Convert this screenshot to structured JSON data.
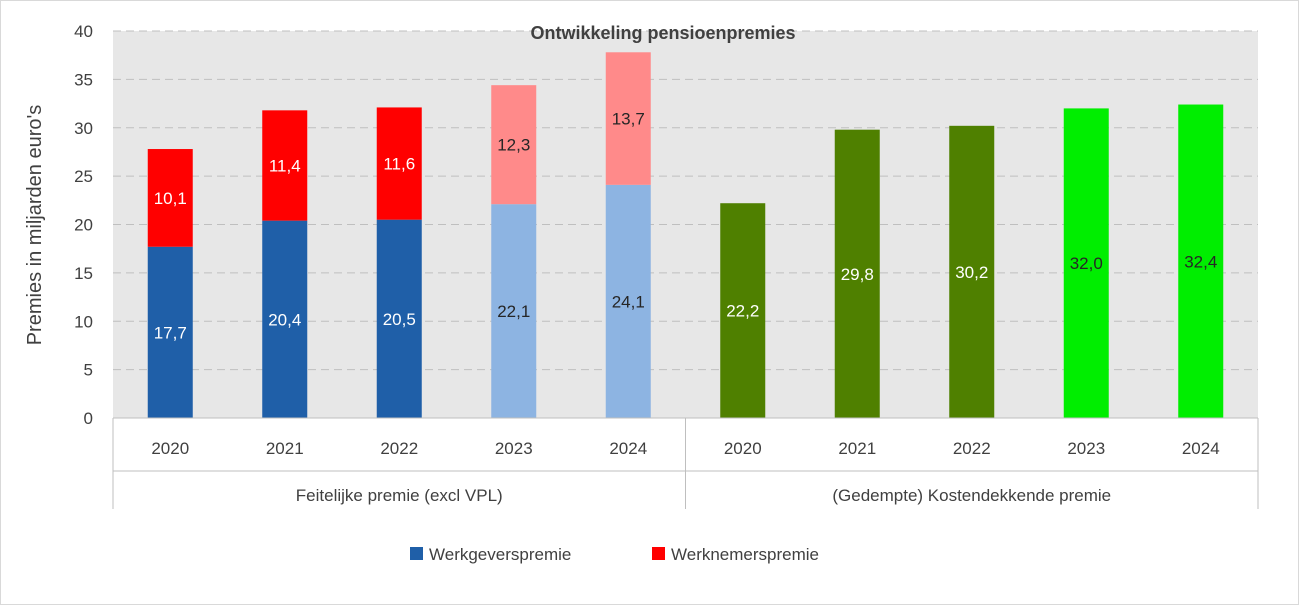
{
  "chart_data": {
    "type": "bar",
    "title": "Ontwikkeling pensioenpremies",
    "ylabel": "Premies in miljarden euro's",
    "xlabel": "",
    "ylim": [
      0,
      40
    ],
    "yticks": [
      "0",
      "5",
      "10",
      "15",
      "20",
      "25",
      "30",
      "35",
      "40"
    ],
    "grid": true,
    "legend_position": "bottom",
    "groups": [
      {
        "label": "Feitelijke premie (excl VPL)",
        "categories": [
          "2020",
          "2021",
          "2022",
          "2023",
          "2024"
        ],
        "series": [
          {
            "name": "Werkgeverspremie",
            "values": [
              17.7,
              20.4,
              20.5,
              22.1,
              24.1
            ],
            "labels": [
              "17,7",
              "20,4",
              "20,5",
              "22,1",
              "24,1"
            ],
            "colors": [
              "#1f5fa8",
              "#1f5fa8",
              "#1f5fa8",
              "#8db4e2",
              "#8db4e2"
            ],
            "label_colors": [
              "#ffffff",
              "#ffffff",
              "#ffffff",
              "#262626",
              "#262626"
            ]
          },
          {
            "name": "Werknemerspremie",
            "values": [
              10.1,
              11.4,
              11.6,
              12.3,
              13.7
            ],
            "labels": [
              "10,1",
              "11,4",
              "11,6",
              "12,3",
              "13,7"
            ],
            "colors": [
              "#ff0000",
              "#ff0000",
              "#ff0000",
              "#ff8a8a",
              "#ff8a8a"
            ],
            "label_colors": [
              "#ffffff",
              "#ffffff",
              "#ffffff",
              "#262626",
              "#262626"
            ]
          }
        ]
      },
      {
        "label": "(Gedempte) Kostendekkende premie",
        "categories": [
          "2020",
          "2021",
          "2022",
          "2023",
          "2024"
        ],
        "series": [
          {
            "values": [
              22.2,
              29.8,
              30.2,
              32.0,
              32.4
            ],
            "labels": [
              "22,2",
              "29,8",
              "30,2",
              "32,0",
              "32,4"
            ],
            "colors": [
              "#4f8000",
              "#4f8000",
              "#4f8000",
              "#00ee00",
              "#00ee00"
            ],
            "label_colors": [
              "#ffffff",
              "#ffffff",
              "#ffffff",
              "#262626",
              "#262626"
            ]
          }
        ]
      }
    ],
    "legend": [
      {
        "name": "Werkgeverspremie",
        "color": "#1f5fa8"
      },
      {
        "name": "Werknemerspremie",
        "color": "#ff0000"
      }
    ],
    "colors": {
      "plot_background": "#e7e7e7",
      "gridline": "#bfbfbf",
      "axis_line": "#bfbfbf",
      "text": "#404040"
    }
  }
}
